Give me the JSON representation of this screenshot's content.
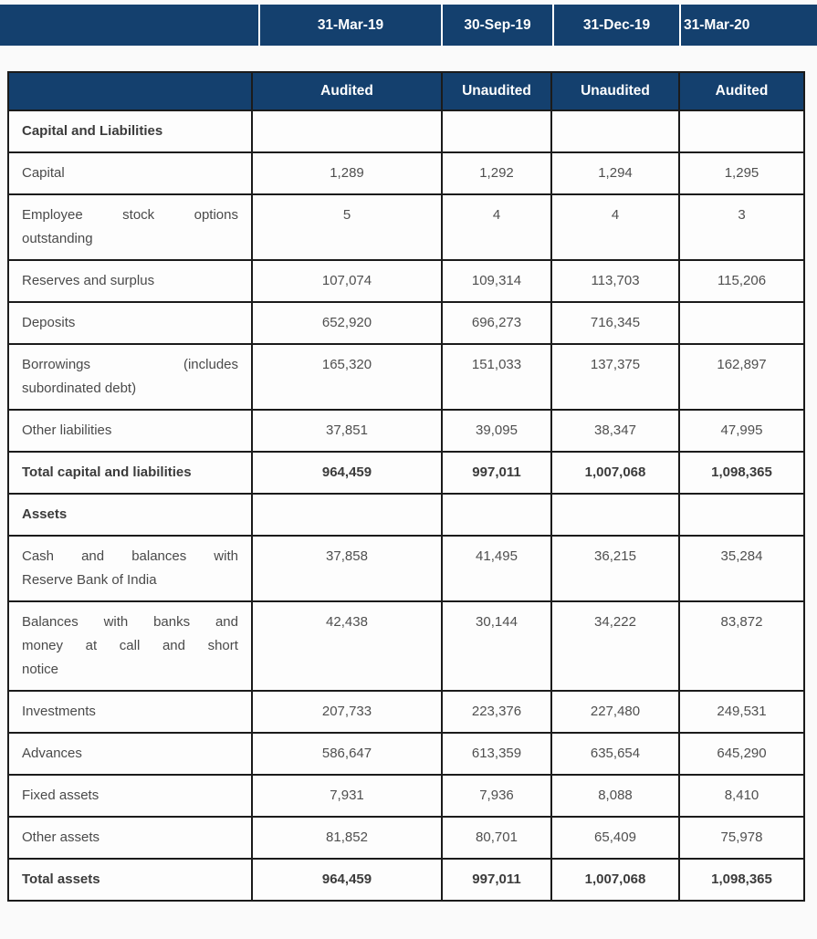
{
  "top_header": {
    "dates": [
      "31-Mar-19",
      "30-Sep-19",
      "31-Dec-19",
      "31-Mar-20"
    ]
  },
  "table": {
    "column_headers": [
      "Audited",
      "Unaudited",
      "Unaudited",
      "Audited"
    ],
    "rows": [
      {
        "label": "Capital and Liabilities",
        "bold": true,
        "values": [
          "",
          "",
          "",
          ""
        ]
      },
      {
        "label": "Capital",
        "bold": false,
        "values": [
          "1,289",
          "1,292",
          "1,294",
          "1,295"
        ]
      },
      {
        "label_lines": [
          "Employee stock options",
          "outstanding"
        ],
        "bold": false,
        "values": [
          "5",
          "4",
          "4",
          "3"
        ]
      },
      {
        "label": "Reserves and surplus",
        "bold": false,
        "values": [
          "107,074",
          "109,314",
          "113,703",
          "115,206"
        ]
      },
      {
        "label": "Deposits",
        "bold": false,
        "values": [
          "652,920",
          "696,273",
          "716,345",
          ""
        ]
      },
      {
        "label_lines": [
          "Borrowings (includes",
          "subordinated debt)"
        ],
        "bold": false,
        "values": [
          "165,320",
          "151,033",
          "137,375",
          "162,897"
        ]
      },
      {
        "label": "Other liabilities",
        "bold": false,
        "values": [
          "37,851",
          "39,095",
          "38,347",
          "47,995"
        ]
      },
      {
        "label": "Total capital and liabilities",
        "bold": true,
        "values": [
          "964,459",
          "997,011",
          "1,007,068",
          "1,098,365"
        ]
      },
      {
        "label": "Assets",
        "bold": true,
        "values": [
          "",
          "",
          "",
          ""
        ]
      },
      {
        "label_lines": [
          "Cash and balances with",
          "Reserve Bank of India"
        ],
        "bold": false,
        "values": [
          "37,858",
          "41,495",
          "36,215",
          "35,284"
        ]
      },
      {
        "label_lines": [
          "Balances with banks and",
          "money at call and short",
          "notice"
        ],
        "bold": false,
        "values": [
          "42,438",
          "30,144",
          "34,222",
          "83,872"
        ]
      },
      {
        "label": "Investments",
        "bold": false,
        "values": [
          "207,733",
          "223,376",
          "227,480",
          "249,531"
        ]
      },
      {
        "label": "Advances",
        "bold": false,
        "values": [
          "586,647",
          "613,359",
          "635,654",
          "645,290"
        ]
      },
      {
        "label": "Fixed assets",
        "bold": false,
        "values": [
          "7,931",
          "7,936",
          "8,088",
          "8,410"
        ]
      },
      {
        "label": "Other assets",
        "bold": false,
        "values": [
          "81,852",
          "80,701",
          "65,409",
          "75,978"
        ]
      },
      {
        "label": "Total assets",
        "bold": true,
        "values": [
          "964,459",
          "997,011",
          "1,007,068",
          "1,098,365"
        ]
      }
    ]
  },
  "colors": {
    "header_navy": "#14406E",
    "border_black": "#1b1b1b",
    "page_background": "#fafafa",
    "cell_background": "#fdfdfd",
    "text_gray": "#4a4a4a"
  }
}
